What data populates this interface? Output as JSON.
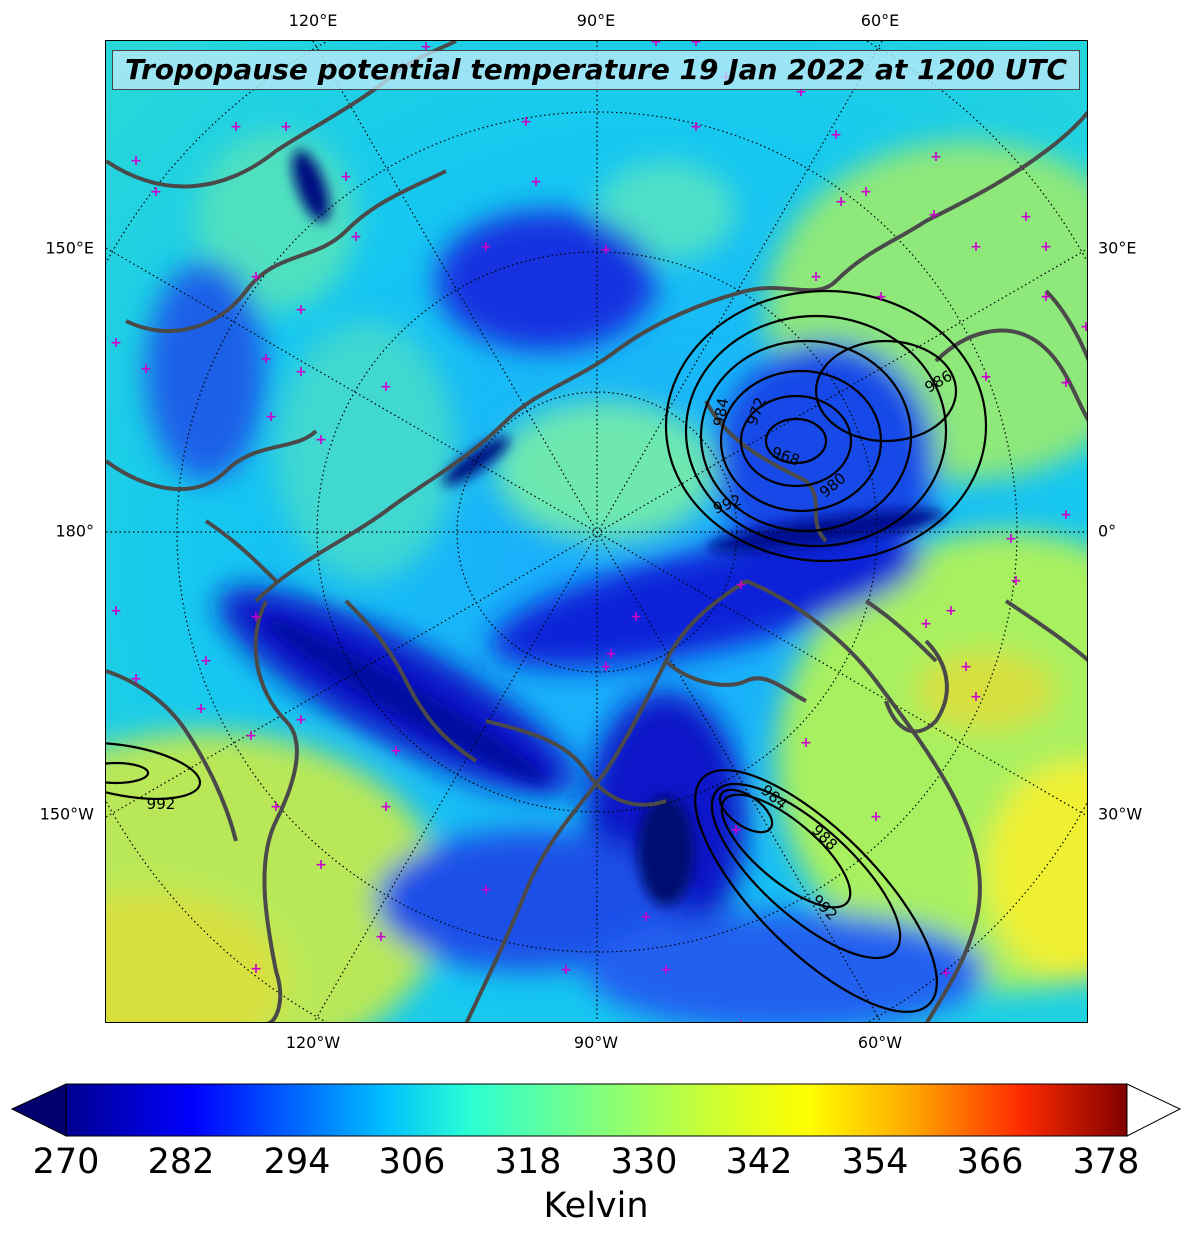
{
  "title": "Tropopause potential temperature 19 Jan 2022 at 1200 UTC",
  "longitude_labels": {
    "top": [
      "120°E",
      "90°E",
      "60°E"
    ],
    "bottom": [
      "120°W",
      "90°W",
      "60°W"
    ],
    "left": [
      "150°E",
      "180°",
      "150°W"
    ],
    "right": [
      "30°E",
      "0°",
      "30°W"
    ]
  },
  "pressure_contour_labels": [
    "984",
    "972",
    "968",
    "980",
    "992",
    "986",
    "984",
    "988",
    "992",
    "992"
  ],
  "colorbar": {
    "units": "Kelvin",
    "ticks": [
      "270",
      "282",
      "294",
      "306",
      "318",
      "330",
      "342",
      "354",
      "366",
      "378"
    ],
    "range": [
      270,
      378
    ],
    "extend": "both",
    "colormap": "jet",
    "colors": [
      "#00008f",
      "#0000ff",
      "#00bfff",
      "#2affd4",
      "#7fff7f",
      "#d4ff2a",
      "#ffff00",
      "#ffa500",
      "#ff2a00",
      "#800000"
    ]
  },
  "map_colors": {
    "coastline": "#4a4a4a",
    "marker": "#cc00cc",
    "contour": "#000000"
  }
}
